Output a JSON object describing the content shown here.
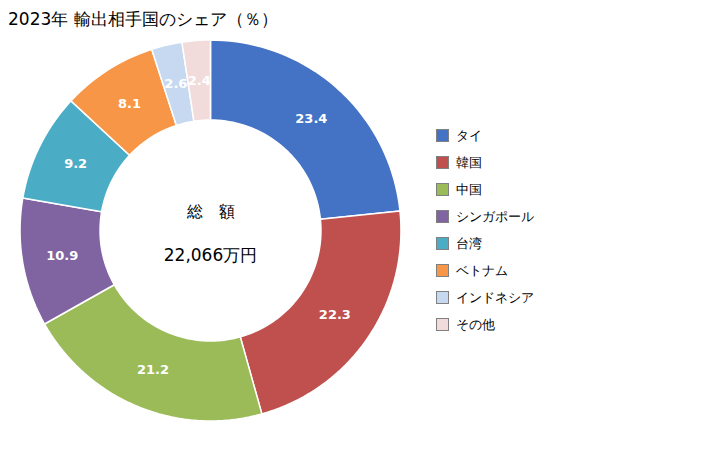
{
  "chart_data": {
    "type": "donut",
    "title": "2023年 輸出相手国のシェア（％）",
    "categories": [
      "タイ",
      "韓国",
      "中国",
      "シンガポール",
      "台湾",
      "ベトナム",
      "インドネシア",
      "その他"
    ],
    "values": [
      23.4,
      22.3,
      21.2,
      10.9,
      9.2,
      8.1,
      2.6,
      2.4
    ],
    "colors": [
      "#4472C4",
      "#C0504D",
      "#9BBB59",
      "#8064A2",
      "#4BACC6",
      "#F79646",
      "#C6D9F1",
      "#F2DCDB"
    ],
    "data_labels": true,
    "annotations": [
      "総　額",
      "22,066万円"
    ],
    "legend": "right"
  }
}
